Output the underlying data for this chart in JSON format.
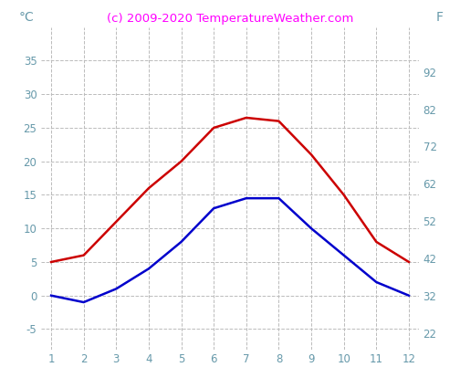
{
  "months": [
    1,
    2,
    3,
    4,
    5,
    6,
    7,
    8,
    9,
    10,
    11,
    12
  ],
  "temp_max_c": [
    5,
    6,
    11,
    16,
    20,
    25,
    26.5,
    26,
    21,
    15,
    8,
    5
  ],
  "temp_min_c": [
    0,
    -1,
    1,
    4,
    8,
    13,
    14.5,
    14.5,
    10,
    6,
    2,
    0
  ],
  "line_color_max": "#cc0000",
  "line_color_min": "#0000cc",
  "title": "(c) 2009-2020 TemperatureWeather.com",
  "title_color": "#ff00ff",
  "ylabel_left": "°C",
  "ylabel_right": "F",
  "ylim_c": [
    -8,
    40
  ],
  "yticks_c": [
    -5,
    0,
    5,
    10,
    15,
    20,
    25,
    30,
    35
  ],
  "yticks_f": [
    22,
    32,
    42,
    52,
    62,
    72,
    82,
    92
  ],
  "yticks_f_c": [
    -5.56,
    0,
    5.56,
    11.11,
    16.67,
    22.22,
    27.78,
    33.33
  ],
  "xlim": [
    0.7,
    12.3
  ],
  "xticks": [
    1,
    2,
    3,
    4,
    5,
    6,
    7,
    8,
    9,
    10,
    11,
    12
  ],
  "grid_color": "#bbbbbb",
  "tick_color": "#6699aa",
  "background_color": "#ffffff",
  "line_width": 1.8,
  "title_fontsize": 9.5,
  "axis_label_fontsize": 10,
  "tick_fontsize": 8.5
}
